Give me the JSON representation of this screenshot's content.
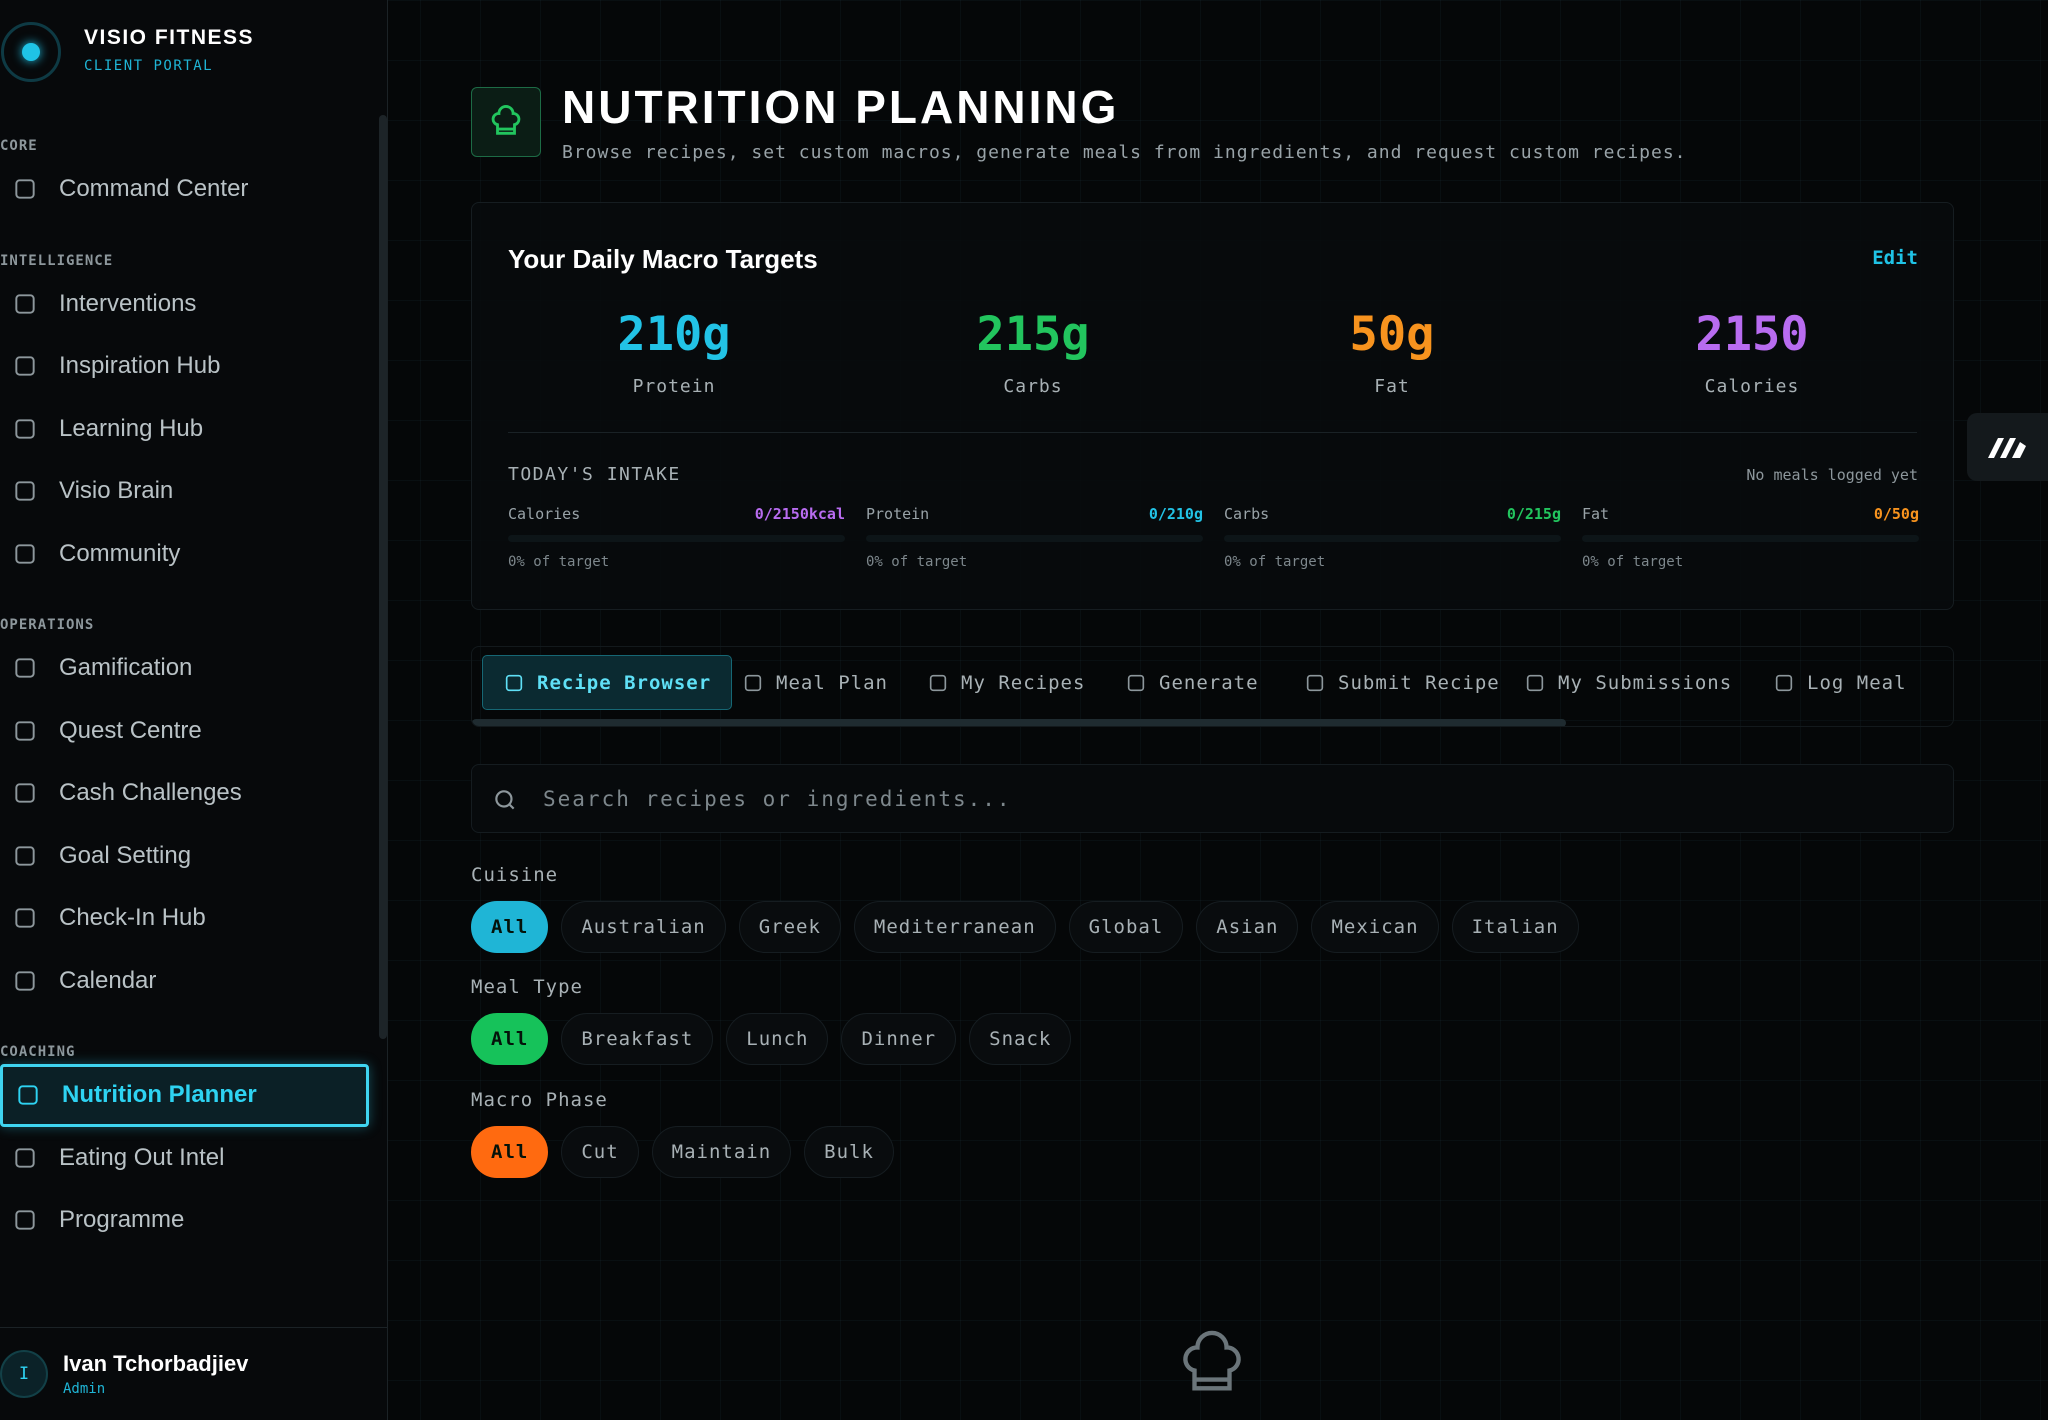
{
  "sidebar": {
    "brand": "VISIO FITNESS",
    "subtitle": "CLIENT PORTAL",
    "sections": [
      {
        "label": "CORE",
        "items": [
          {
            "label": "Command Center"
          }
        ]
      },
      {
        "label": "INTELLIGENCE",
        "items": [
          {
            "label": "Interventions"
          },
          {
            "label": "Inspiration Hub"
          },
          {
            "label": "Learning Hub"
          },
          {
            "label": "Visio Brain"
          },
          {
            "label": "Community"
          }
        ]
      },
      {
        "label": "OPERATIONS",
        "items": [
          {
            "label": "Gamification"
          },
          {
            "label": "Quest Centre"
          },
          {
            "label": "Cash Challenges"
          },
          {
            "label": "Goal Setting"
          },
          {
            "label": "Check-In Hub"
          },
          {
            "label": "Calendar"
          }
        ]
      },
      {
        "label": "COACHING",
        "items": [
          {
            "label": "Nutrition Planner",
            "active": true
          },
          {
            "label": "Eating Out Intel"
          },
          {
            "label": "Programme"
          }
        ]
      }
    ],
    "user": {
      "initial": "I",
      "name": "Ivan Tchorbadjiev",
      "role": "Admin"
    }
  },
  "header": {
    "title": "NUTRITION PLANNING",
    "description": "Browse recipes, set custom macros, generate meals from ingredients, and request custom recipes."
  },
  "macro_targets": {
    "title": "Your Daily Macro Targets",
    "edit": "Edit",
    "items": [
      {
        "value": "210g",
        "label": "Protein",
        "color": "#22c3e6"
      },
      {
        "value": "215g",
        "label": "Carbs",
        "color": "#22c55e"
      },
      {
        "value": "50g",
        "label": "Fat",
        "color": "#f7931e"
      },
      {
        "value": "2150",
        "label": "Calories",
        "color": "#b86cf0"
      }
    ]
  },
  "intake": {
    "title": "TODAY'S INTAKE",
    "status": "No meals logged yet",
    "items": [
      {
        "label": "Calories",
        "amount": "0/2150kcal",
        "note": "0% of target",
        "color": "#b86cf0"
      },
      {
        "label": "Protein",
        "amount": "0/210g",
        "note": "0% of target",
        "color": "#22c3e6"
      },
      {
        "label": "Carbs",
        "amount": "0/215g",
        "note": "0% of target",
        "color": "#22c55e"
      },
      {
        "label": "Fat",
        "amount": "0/50g",
        "note": "0% of target",
        "color": "#f7931e"
      }
    ]
  },
  "tabs": [
    {
      "label": "Recipe Browser",
      "active": true
    },
    {
      "label": "Meal Plan"
    },
    {
      "label": "My Recipes"
    },
    {
      "label": "Generate"
    },
    {
      "label": "Submit Recipe"
    },
    {
      "label": "My Submissions"
    },
    {
      "label": "Log Meal"
    }
  ],
  "search": {
    "placeholder": "Search recipes or ingredients..."
  },
  "filters": [
    {
      "label": "Cuisine",
      "color": "#1fb5d6",
      "options": [
        "All",
        "Australian",
        "Greek",
        "Mediterranean",
        "Global",
        "Asian",
        "Mexican",
        "Italian"
      ]
    },
    {
      "label": "Meal Type",
      "color": "#16c25a",
      "options": [
        "All",
        "Breakfast",
        "Lunch",
        "Dinner",
        "Snack"
      ]
    },
    {
      "label": "Macro Phase",
      "color": "#ff6a10",
      "options": [
        "All",
        "Cut",
        "Maintain",
        "Bulk"
      ]
    }
  ]
}
